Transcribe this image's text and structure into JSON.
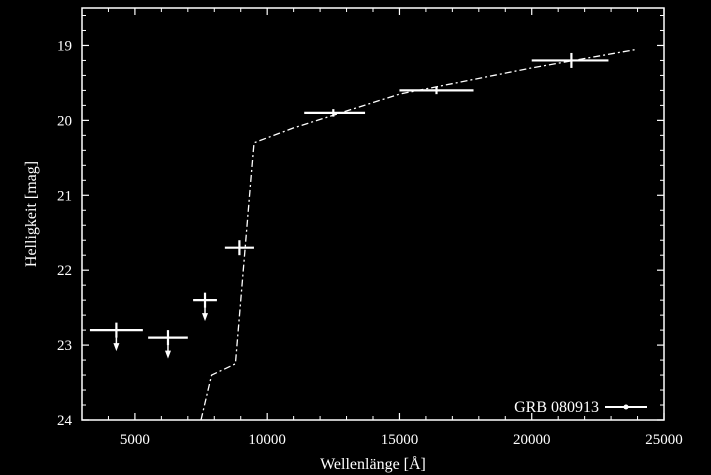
{
  "chart_data": {
    "type": "scatter",
    "xlabel": "Wellenlänge [Å]",
    "ylabel": "Helligkeit [mag]",
    "xlim": [
      3000,
      25000
    ],
    "ylim": [
      24,
      18.5
    ],
    "y_inverted": true,
    "x_ticks": [
      5000,
      10000,
      15000,
      20000,
      25000
    ],
    "x_tick_labels": [
      "5000",
      "10000",
      "15000",
      "20000",
      "25000"
    ],
    "y_ticks": [
      19,
      20,
      21,
      22,
      23,
      24
    ],
    "y_tick_labels": [
      "19",
      "20",
      "21",
      "22",
      "23",
      "24"
    ],
    "grid": false,
    "legend": {
      "position": "bottom-right",
      "label": "GRB 080913"
    },
    "colors": {
      "background": "#000000",
      "foreground": "#ffffff"
    },
    "points": [
      {
        "x": 4300,
        "x_low": 3300,
        "x_high": 5300,
        "y": 22.8,
        "y_err": 0.1,
        "upper_limit": true
      },
      {
        "x": 6250,
        "x_low": 5500,
        "x_high": 7000,
        "y": 22.9,
        "y_err": 0.1,
        "upper_limit": true
      },
      {
        "x": 7650,
        "x_low": 7200,
        "x_high": 8100,
        "y": 22.4,
        "y_err": 0.1,
        "upper_limit": true
      },
      {
        "x": 8950,
        "x_low": 8400,
        "x_high": 9500,
        "y": 21.7,
        "y_err": 0.1,
        "upper_limit": false
      },
      {
        "x": 12500,
        "x_low": 11400,
        "x_high": 13700,
        "y": 19.9,
        "y_err": 0.05,
        "upper_limit": false
      },
      {
        "x": 16400,
        "x_low": 15000,
        "x_high": 17800,
        "y": 19.6,
        "y_err": 0.05,
        "upper_limit": false
      },
      {
        "x": 21500,
        "x_low": 20000,
        "x_high": 22900,
        "y": 19.2,
        "y_err": 0.1,
        "upper_limit": false
      }
    ],
    "model_line": {
      "x": [
        7500,
        7900,
        8800,
        9500,
        11000,
        15000,
        20000,
        24000
      ],
      "y": [
        24.0,
        23.4,
        23.25,
        20.3,
        20.1,
        19.65,
        19.3,
        19.05
      ]
    }
  }
}
